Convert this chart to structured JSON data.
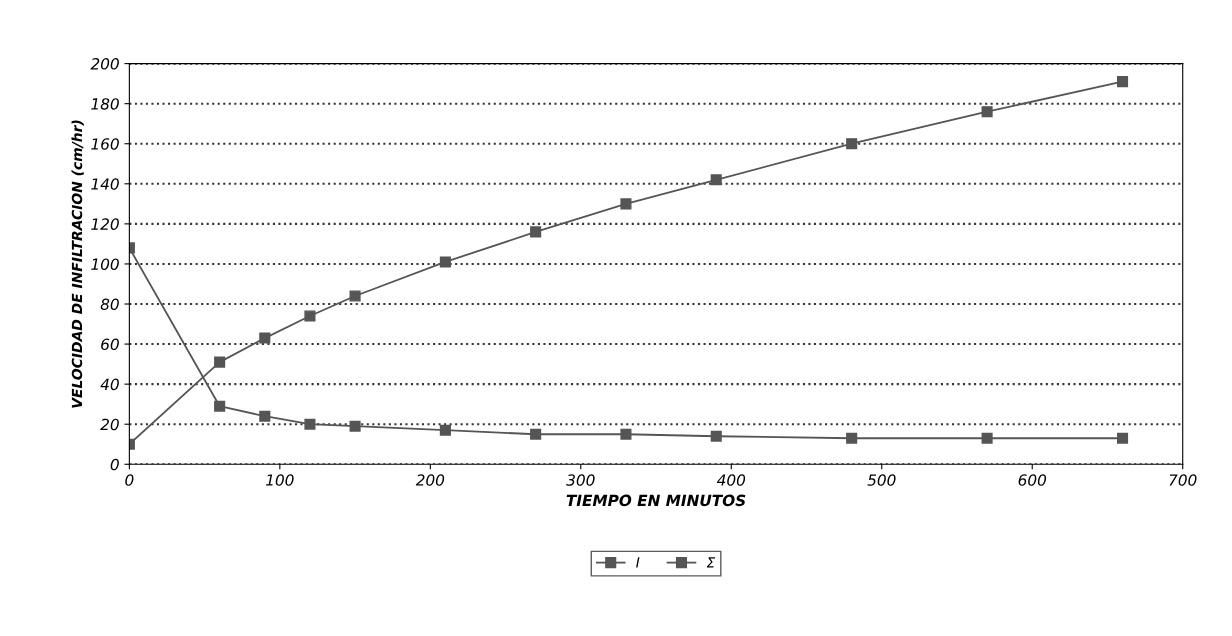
{
  "chart_data": {
    "type": "line",
    "xlabel": "TIEMPO EN MINUTOS",
    "ylabel": "VELOCIDAD DE INFILTRACION (cm/hr)",
    "x": [
      0,
      60,
      90,
      120,
      150,
      210,
      270,
      330,
      390,
      480,
      570,
      660
    ],
    "series": [
      {
        "name": "I",
        "color": "#555555",
        "values": [
          108,
          29,
          24,
          20,
          19,
          17,
          15,
          15,
          14,
          13,
          13,
          13
        ]
      },
      {
        "name": "Σ",
        "color": "#555555",
        "values": [
          10,
          51,
          63,
          74,
          84,
          101,
          116,
          130,
          142,
          160,
          176,
          191
        ]
      }
    ],
    "xlim": [
      0,
      700
    ],
    "xticks": [
      0,
      100,
      200,
      300,
      400,
      500,
      600,
      700
    ],
    "ylim": [
      0,
      200
    ],
    "yticks": [
      0,
      20,
      40,
      60,
      80,
      100,
      120,
      140,
      160,
      180,
      200
    ],
    "grid": "y",
    "legend": "bottom",
    "marker": "square",
    "line_style": "solid"
  }
}
